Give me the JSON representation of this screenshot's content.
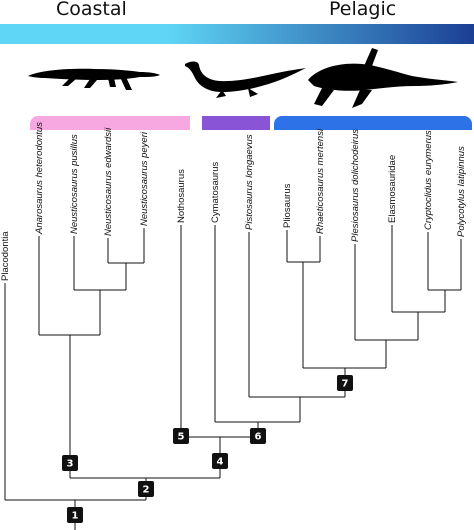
{
  "header": {
    "left_label": "Coastal",
    "right_label": "Pelagic"
  },
  "habitat_gradient": {
    "start_color": "#5fd6f5",
    "end_color": "#1c3f94"
  },
  "silhouettes": [
    {
      "icon": "nothosaur-silhouette-icon"
    },
    {
      "icon": "long-neck-swimmer-silhouette-icon"
    },
    {
      "icon": "plesiosaur-silhouette-icon"
    }
  ],
  "group_bars": [
    {
      "color": "#f7a8e0"
    },
    {
      "color": "#8a54d6"
    },
    {
      "color": "#2e72e8"
    }
  ],
  "taxa": [
    {
      "name": "Placodontia",
      "italic": false
    },
    {
      "name": "Anarosaurus heterodontus",
      "italic": true
    },
    {
      "name": "Neusticosaurus pusillus",
      "italic": true
    },
    {
      "name": "Neusticosaurus edwardsii",
      "italic": true
    },
    {
      "name": "Neusticosaurus peyeri",
      "italic": true
    },
    {
      "name": "Nothosaurus",
      "italic": false
    },
    {
      "name": "Cymatosaurus",
      "italic": false
    },
    {
      "name": "Pistosaurus longaevus",
      "italic": true
    },
    {
      "name": "Pliosaurus",
      "italic": false
    },
    {
      "name": "Rhaeticosaurus mertensi",
      "italic": true
    },
    {
      "name": "Plesiosaurus dolichodeirus",
      "italic": true
    },
    {
      "name": "Elasmosauridae",
      "italic": false
    },
    {
      "name": "Cryptoclidus eurymerus",
      "italic": true
    },
    {
      "name": "Polycotylus latipinnus",
      "italic": true
    }
  ],
  "nodes": [
    {
      "label": "1"
    },
    {
      "label": "2"
    },
    {
      "label": "3"
    },
    {
      "label": "4"
    },
    {
      "label": "5"
    },
    {
      "label": "6"
    },
    {
      "label": "7"
    }
  ]
}
